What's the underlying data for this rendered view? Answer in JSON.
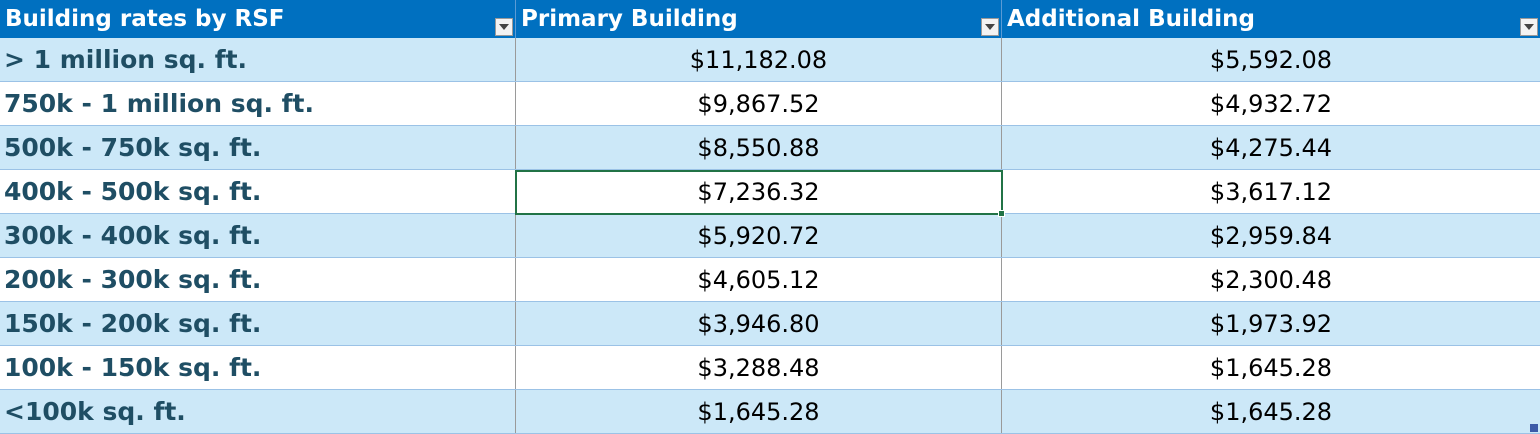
{
  "table": {
    "headers": [
      {
        "label": "Building rates by RSF"
      },
      {
        "label": "Primary Building"
      },
      {
        "label": "Additional Building"
      }
    ],
    "rows": [
      {
        "label": "> 1 million sq. ft.",
        "primary": "$11,182.08",
        "additional": "$5,592.08"
      },
      {
        "label": "750k - 1 million sq. ft.",
        "primary": "$9,867.52",
        "additional": "$4,932.72"
      },
      {
        "label": "500k - 750k sq. ft.",
        "primary": "$8,550.88",
        "additional": "$4,275.44"
      },
      {
        "label": "400k - 500k sq. ft.",
        "primary": "$7,236.32",
        "additional": "$3,617.12"
      },
      {
        "label": "300k - 400k sq. ft.",
        "primary": "$5,920.72",
        "additional": "$2,959.84"
      },
      {
        "label": "200k - 300k sq. ft.",
        "primary": "$4,605.12",
        "additional": "$2,300.48"
      },
      {
        "label": "150k - 200k sq. ft.",
        "primary": "$3,946.80",
        "additional": "$1,973.92"
      },
      {
        "label": "100k - 150k sq. ft.",
        "primary": "$3,288.48",
        "additional": "$1,645.28"
      },
      {
        "label": "<100k sq. ft.",
        "primary": "$1,645.28",
        "additional": "$1,645.28"
      }
    ]
  },
  "icons": {
    "filter": "chevron-down-icon"
  },
  "colors": {
    "header_bg": "#0070c0",
    "header_text": "#ffffff",
    "band_row": "#cce8f8",
    "label_text": "#1f4e64",
    "selection": "#217346"
  }
}
